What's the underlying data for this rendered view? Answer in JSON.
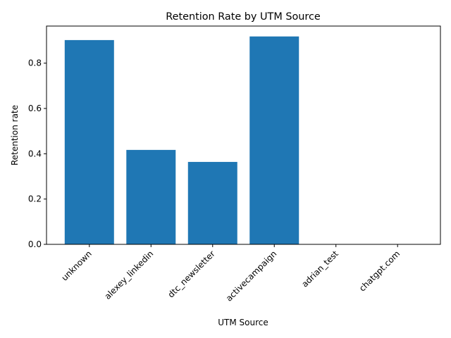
{
  "chart_data": {
    "type": "bar",
    "title": "Retention Rate by UTM Source",
    "xlabel": "UTM Source",
    "ylabel": "Retention rate",
    "categories": [
      "unknown",
      "alexey_linkedin",
      "dtc_newsletter",
      "activecampaign",
      "adrian_test",
      "chatgpt.com"
    ],
    "values": [
      0.902,
      0.417,
      0.364,
      0.918,
      0.0,
      0.0
    ],
    "ylim": [
      0,
      0.9639
    ],
    "yticks": [
      0.0,
      0.2,
      0.4,
      0.6,
      0.8
    ],
    "ytick_labels": [
      "0.0",
      "0.2",
      "0.4",
      "0.6",
      "0.8"
    ],
    "bar_color": "#1f77b4",
    "grid": false,
    "legend": false
  }
}
